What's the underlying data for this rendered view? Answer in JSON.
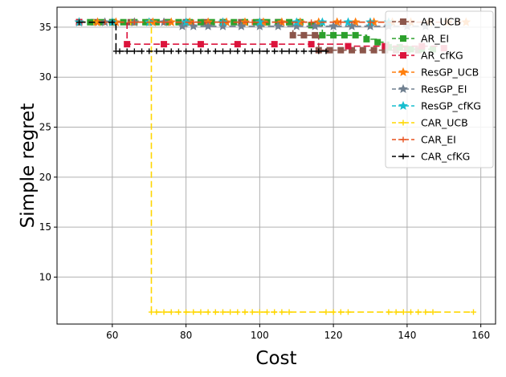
{
  "chart_data": {
    "type": "line",
    "xlabel": "Cost",
    "ylabel": "Simple regret",
    "xlim": [
      45,
      164
    ],
    "ylim": [
      5.3,
      37.0
    ],
    "xticks": [
      60,
      80,
      100,
      120,
      140,
      160
    ],
    "yticks": [
      10,
      15,
      20,
      25,
      30,
      35
    ],
    "grid": true,
    "legend_position": "top-right",
    "series": [
      {
        "name": "AR_UCB",
        "color": "#8c564b",
        "dash": "8,4",
        "marker": "square",
        "x": [
          51,
          55,
          60,
          65,
          70,
          75,
          80,
          85,
          90,
          95,
          100,
          105,
          109,
          112,
          115,
          116,
          119,
          122,
          125,
          128,
          131,
          134,
          137,
          140,
          143
        ],
        "y": [
          35.5,
          35.5,
          35.5,
          35.5,
          35.5,
          35.5,
          35.5,
          35.5,
          35.5,
          35.5,
          35.5,
          35.5,
          34.2,
          34.2,
          34.2,
          32.7,
          32.7,
          32.7,
          32.7,
          32.7,
          32.7,
          32.7,
          32.7,
          32.7,
          32.7
        ]
      },
      {
        "name": "AR_EI",
        "color": "#2ca02c",
        "dash": "8,4",
        "marker": "square",
        "x": [
          51,
          54,
          57,
          60,
          63,
          66,
          69,
          72,
          75,
          78,
          81,
          84,
          87,
          90,
          93,
          96,
          99,
          102,
          105,
          108,
          111,
          114,
          117,
          120,
          123,
          126,
          129,
          132,
          135,
          138,
          141,
          144,
          147
        ],
        "y": [
          35.5,
          35.5,
          35.5,
          35.5,
          35.5,
          35.5,
          35.5,
          35.5,
          35.5,
          35.5,
          35.5,
          35.5,
          35.5,
          35.5,
          35.5,
          35.5,
          35.5,
          35.5,
          35.5,
          35.5,
          35.5,
          35.2,
          34.2,
          34.2,
          34.2,
          34.2,
          33.8,
          33.5,
          33.0,
          33.0,
          32.8,
          32.8,
          32.8
        ]
      },
      {
        "name": "AR_cfKG",
        "color": "#dc143c",
        "dash": "8,4",
        "marker": "square",
        "x": [
          51,
          64,
          74,
          84,
          94,
          104,
          114,
          124,
          134,
          144,
          150
        ],
        "y": [
          35.5,
          33.3,
          33.3,
          33.3,
          33.3,
          33.3,
          33.3,
          33.1,
          33.1,
          33.1,
          32.9
        ]
      },
      {
        "name": "ResGP_UCB",
        "color": "#ff7f0e",
        "dash": "8,4",
        "marker": "star",
        "x": [
          51,
          56,
          61,
          66,
          71,
          76,
          81,
          86,
          91,
          96,
          101,
          106,
          111,
          116,
          121,
          126,
          131,
          136,
          141,
          146,
          151,
          156
        ],
        "y": [
          35.5,
          35.5,
          35.5,
          35.5,
          35.5,
          35.5,
          35.5,
          35.5,
          35.5,
          35.5,
          35.5,
          35.5,
          35.5,
          35.5,
          35.5,
          35.5,
          35.5,
          35.5,
          35.5,
          35.5,
          35.5,
          35.5
        ]
      },
      {
        "name": "ResGP_EI",
        "color": "#708090",
        "dash": "8,4",
        "marker": "star",
        "x": [
          51,
          58,
          66,
          74,
          79,
          82,
          86,
          90,
          95,
          100,
          105,
          110,
          115,
          120,
          125,
          130,
          135,
          140,
          145
        ],
        "y": [
          35.5,
          35.5,
          35.5,
          35.5,
          35.1,
          35.1,
          35.1,
          35.1,
          35.1,
          35.1,
          35.1,
          35.1,
          35.1,
          35.1,
          35.1,
          35.1,
          35.1,
          35.1,
          35.1
        ]
      },
      {
        "name": "ResGP_cfKG",
        "color": "#17becf",
        "dash": "8,4",
        "marker": "star",
        "x": [
          51,
          60,
          70,
          80,
          90,
          100,
          110,
          117,
          124,
          130,
          135
        ],
        "y": [
          35.5,
          35.5,
          35.5,
          35.5,
          35.5,
          35.5,
          35.5,
          35.5,
          35.5,
          35.5,
          35.5
        ]
      },
      {
        "name": "CAR_UCB",
        "color": "#ffd700",
        "dash": "8,4",
        "marker": "plus",
        "x": [
          51,
          55,
          60,
          65,
          70,
          70.6,
          72,
          74,
          76,
          78,
          80,
          82,
          84,
          86,
          88,
          90,
          92,
          94,
          96,
          98,
          100,
          102,
          104,
          106,
          108,
          118,
          120,
          122,
          124,
          135,
          137,
          139,
          141,
          143,
          145,
          147,
          158
        ],
        "y": [
          35.5,
          35.5,
          35.5,
          35.5,
          35.5,
          6.5,
          6.5,
          6.5,
          6.5,
          6.5,
          6.5,
          6.5,
          6.5,
          6.5,
          6.5,
          6.5,
          6.5,
          6.5,
          6.5,
          6.5,
          6.5,
          6.5,
          6.5,
          6.5,
          6.5,
          6.5,
          6.5,
          6.5,
          6.5,
          6.5,
          6.5,
          6.5,
          6.5,
          6.5,
          6.5,
          6.5,
          6.5
        ]
      },
      {
        "name": "CAR_EI",
        "color": "#e8501c",
        "dash": "8,4",
        "marker": "plus",
        "x": [
          51,
          58,
          66,
          74,
          82,
          90,
          98,
          106,
          114,
          122,
          130,
          138,
          146,
          154
        ],
        "y": [
          35.5,
          35.5,
          35.5,
          35.5,
          35.5,
          35.5,
          35.5,
          35.5,
          35.5,
          35.5,
          35.5,
          35.5,
          35.5,
          35.5
        ]
      },
      {
        "name": "CAR_cfKG",
        "color": "#000000",
        "dash": "8,4",
        "marker": "plus",
        "x": [
          51,
          60,
          61,
          62,
          64,
          66,
          68,
          70,
          72,
          74,
          76,
          78,
          80,
          82,
          84,
          86,
          88,
          90,
          92,
          94,
          96,
          98,
          100,
          102,
          104,
          106,
          108,
          110,
          112,
          114,
          116,
          118
        ],
        "y": [
          35.5,
          35.5,
          32.6,
          32.6,
          32.6,
          32.6,
          32.6,
          32.6,
          32.6,
          32.6,
          32.6,
          32.6,
          32.6,
          32.6,
          32.6,
          32.6,
          32.6,
          32.6,
          32.6,
          32.6,
          32.6,
          32.6,
          32.6,
          32.6,
          32.6,
          32.6,
          32.6,
          32.6,
          32.6,
          32.6,
          32.6,
          32.6
        ]
      }
    ]
  }
}
